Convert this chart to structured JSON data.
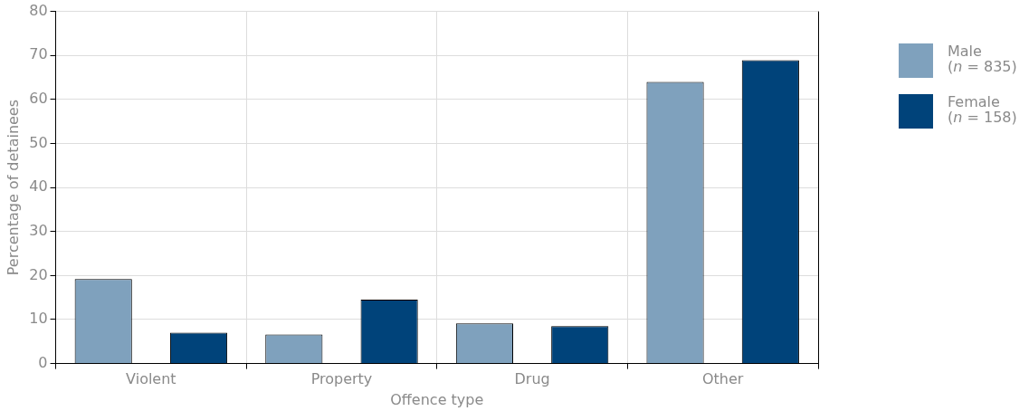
{
  "chart_data": {
    "type": "bar",
    "xlabel": "Offence type",
    "ylabel": "Percentage of detainees",
    "categories": [
      "Violent",
      "Property",
      "Drug",
      "Other"
    ],
    "series": [
      {
        "name": "Male\n(n = 835)",
        "color": "#7fa1bd",
        "values": [
          19.2,
          6.6,
          9.1,
          64.0
        ]
      },
      {
        "name": "Female\n(n = 158)",
        "color": "#00437a",
        "values": [
          7.0,
          14.5,
          8.5,
          68.9
        ]
      }
    ],
    "ylim": [
      0,
      80
    ],
    "yticks": [
      0,
      10,
      20,
      30,
      40,
      50,
      60,
      70,
      80
    ],
    "grid": true,
    "legend": "right"
  }
}
